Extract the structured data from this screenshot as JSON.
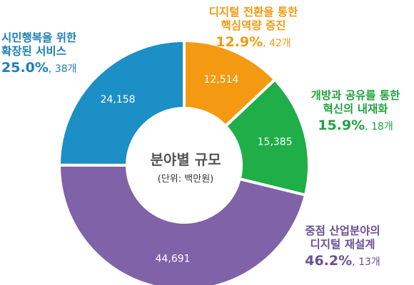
{
  "center": {
    "title": "분야별 규모",
    "unit": "(단위: 백만원)"
  },
  "chart_data": {
    "type": "pie",
    "title": "",
    "unit": "백만원",
    "series": [
      {
        "category_lines": [
          "디지털 전환을 통한",
          "핵심역량 증진"
        ],
        "value": 12514,
        "value_label": "12,514",
        "percent_label": "12.9%",
        "count_label": "42개",
        "color": "#f39a12",
        "text_color": "#f39a12"
      },
      {
        "category_lines": [
          "개방과 공유를 통한",
          "혁신의 내재화"
        ],
        "value": 15385,
        "value_label": "15,385",
        "percent_label": "15.9%",
        "count_label": "18개",
        "color": "#1fae48",
        "text_color": "#1fa33f"
      },
      {
        "category_lines": [
          "중점 산업분야의",
          "디지털 재설계"
        ],
        "value": 44691,
        "value_label": "44,691",
        "percent_label": "46.2%",
        "count_label": "13개",
        "color": "#7f62a8",
        "text_color": "#6a4f98"
      },
      {
        "category_lines": [
          "시민행복을 위한",
          "확장된 서비스"
        ],
        "value": 24158,
        "value_label": "24,158",
        "percent_label": "25.0%",
        "count_label": "38개",
        "color": "#1b8fc6",
        "text_color": "#1a7fb8"
      }
    ]
  }
}
